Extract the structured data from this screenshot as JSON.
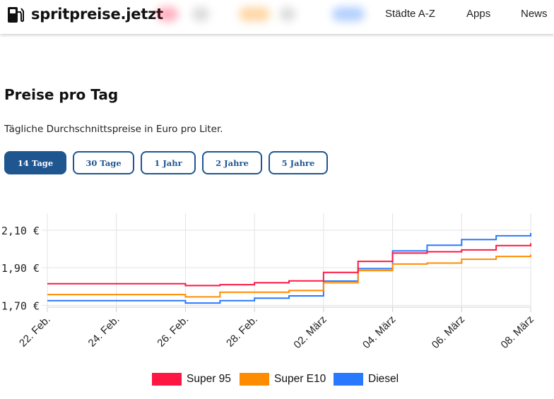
{
  "header": {
    "brand": "spritpreise.jetzt",
    "nav": [
      {
        "label": "Städte A-Z"
      },
      {
        "label": "Apps"
      },
      {
        "label": "News"
      }
    ]
  },
  "main": {
    "title": "Preise pro Tag",
    "subtitle": "Tägliche Durchschnittspreise in Euro pro Liter.",
    "period_buttons": [
      {
        "label": "14 Tage",
        "active": true
      },
      {
        "label": "30 Tage",
        "active": false
      },
      {
        "label": "1 Jahr",
        "active": false
      },
      {
        "label": "2 Jahre",
        "active": false
      },
      {
        "label": "5 Jahre",
        "active": false
      }
    ]
  },
  "colors": {
    "super95": "#ff1744",
    "superE10": "#ff8c00",
    "diesel": "#2979ff",
    "accent": "#1f5690"
  },
  "chart_data": {
    "type": "line",
    "step": true,
    "title": "",
    "xlabel": "",
    "ylabel": "",
    "categories": [
      "22. Feb.",
      "23. Feb.",
      "24. Feb.",
      "25. Feb.",
      "26. Feb.",
      "27. Feb.",
      "28. Feb.",
      "01. März",
      "02. März",
      "03. März",
      "04. März",
      "05. März",
      "06. März",
      "07. März",
      "08. März"
    ],
    "x_tick_labels": [
      "22. Feb.",
      "24. Feb.",
      "26. Feb.",
      "28. Feb.",
      "02. März",
      "04. März",
      "06. März",
      "08. März"
    ],
    "y_ticks": [
      {
        "value": 1.7,
        "label": "1,70 €"
      },
      {
        "value": 1.9,
        "label": "1,90 €"
      },
      {
        "value": 2.1,
        "label": "2,10 €"
      }
    ],
    "ylim": [
      1.69,
      2.19
    ],
    "grid": true,
    "legend_position": "bottom",
    "series": [
      {
        "name": "Super 95",
        "color": "#ff1744",
        "values": [
          1.815,
          1.815,
          1.815,
          1.815,
          1.805,
          1.81,
          1.82,
          1.83,
          1.875,
          1.934,
          1.978,
          1.985,
          1.995,
          2.018,
          2.03
        ]
      },
      {
        "name": "Super E10",
        "color": "#ff8c00",
        "values": [
          1.757,
          1.757,
          1.757,
          1.757,
          1.745,
          1.77,
          1.77,
          1.779,
          1.82,
          1.885,
          1.92,
          1.925,
          1.945,
          1.96,
          1.97
        ]
      },
      {
        "name": "Diesel",
        "color": "#2979ff",
        "values": [
          1.725,
          1.725,
          1.725,
          1.725,
          1.712,
          1.725,
          1.738,
          1.75,
          1.829,
          1.895,
          1.99,
          2.02,
          2.05,
          2.07,
          2.085
        ]
      }
    ]
  }
}
